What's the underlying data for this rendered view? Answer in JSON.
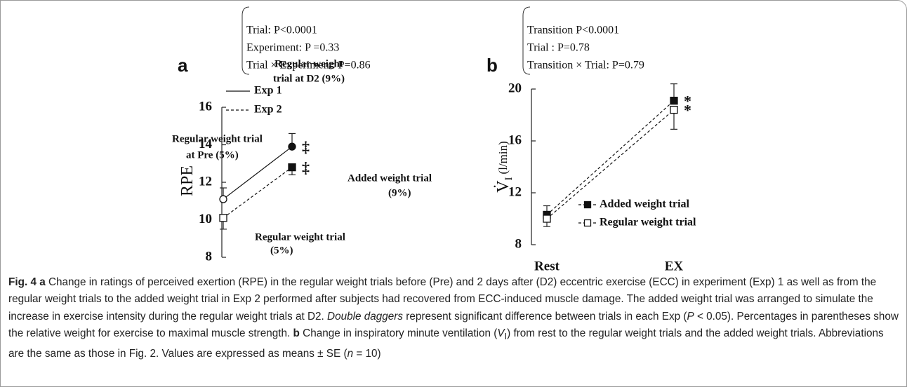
{
  "chart_data": [
    {
      "type": "line",
      "panel": "a",
      "stats": [
        "Trial: P<0.0001",
        "Experiment: P =0.33",
        "Trial × Experiment: P=0.86"
      ],
      "ylabel": "RPE",
      "categories": [
        null,
        null
      ],
      "ylim": [
        8,
        16
      ],
      "yticks": [
        8,
        10,
        12,
        14,
        16
      ],
      "series": [
        {
          "name": "Exp 1",
          "color": "#111",
          "dashed": false,
          "marker": "circle",
          "point_colors": [
            "#fff",
            "#111"
          ],
          "error_direction": "up",
          "values": [
            11.1,
            13.9
          ],
          "errors": [
            0.6,
            0.7
          ],
          "marks": [
            null,
            "‡"
          ]
        },
        {
          "name": "Exp 2",
          "color": "#111",
          "dashed": true,
          "marker": "square",
          "point_colors": [
            "#fff",
            "#111"
          ],
          "error_direction": "down",
          "values": [
            10.1,
            12.8
          ],
          "errors": [
            0.6,
            0.4
          ],
          "marks": [
            null,
            "‡"
          ]
        }
      ],
      "annotations": [
        [
          "Regular weight",
          "trial at D2 (9%)"
        ],
        [
          "Regular weight trial",
          "at Pre (5%)"
        ],
        [
          "Added weight trial",
          "(9%)"
        ],
        [
          "Regular weight trial",
          "(5%)"
        ]
      ]
    },
    {
      "type": "line",
      "panel": "b",
      "stats": [
        "Transition P<0.0001",
        "Trial : P=0.78",
        "Transition × Trial: P=0.79"
      ],
      "ylabel": "V̇",
      "ylabel_sub": "I",
      "ylabel_unit": "(l/min)",
      "categories": [
        "Rest",
        "EX"
      ],
      "ylim": [
        8,
        20
      ],
      "yticks": [
        8,
        12,
        16,
        20
      ],
      "series": [
        {
          "name": "Added weight trial",
          "color": "#111",
          "dashed": true,
          "marker": "square",
          "point_colors": [
            "#111",
            "#111"
          ],
          "error_direction": "up",
          "values": [
            10.3,
            19.1
          ],
          "errors": [
            0.7,
            1.3
          ],
          "marks": [
            null,
            "*"
          ]
        },
        {
          "name": "Regular weight trial",
          "color": "#111",
          "dashed": true,
          "marker": "square",
          "point_colors": [
            "#fff",
            "#fff"
          ],
          "error_direction": "down",
          "values": [
            10.0,
            18.4
          ],
          "errors": [
            0.6,
            1.5
          ],
          "marks": [
            null,
            "*"
          ]
        }
      ]
    }
  ],
  "caption": [
    "Fig. 4 a",
    " Change in ratings of perceived exertion (RPE) in the regular weight trials before (Pre) and 2 days after (D2) eccentric exercise (ECC) in experiment (Exp) 1 as well as from the regular weight trials to the added weight trial in Exp 2 performed after subjects had recovered from ECC-induced muscle damage. The added weight trial was arranged to simulate the increase in exercise intensity during the regular weight trials at D2. ",
    "Double daggers",
    " represent significant difference between trials in each Exp (",
    "P",
    " < 0.05). Percentages in parentheses show the relative weight for exercise to maximal muscle strength. ",
    "b",
    " Change in inspiratory minute ventilation (",
    "V",
    "I",
    ") from rest to the regular weight trials and the added weight trials. Abbreviations are the same as those in Fig. 2. Values are expressed as means ± SE (",
    "n",
    " = 10)"
  ]
}
